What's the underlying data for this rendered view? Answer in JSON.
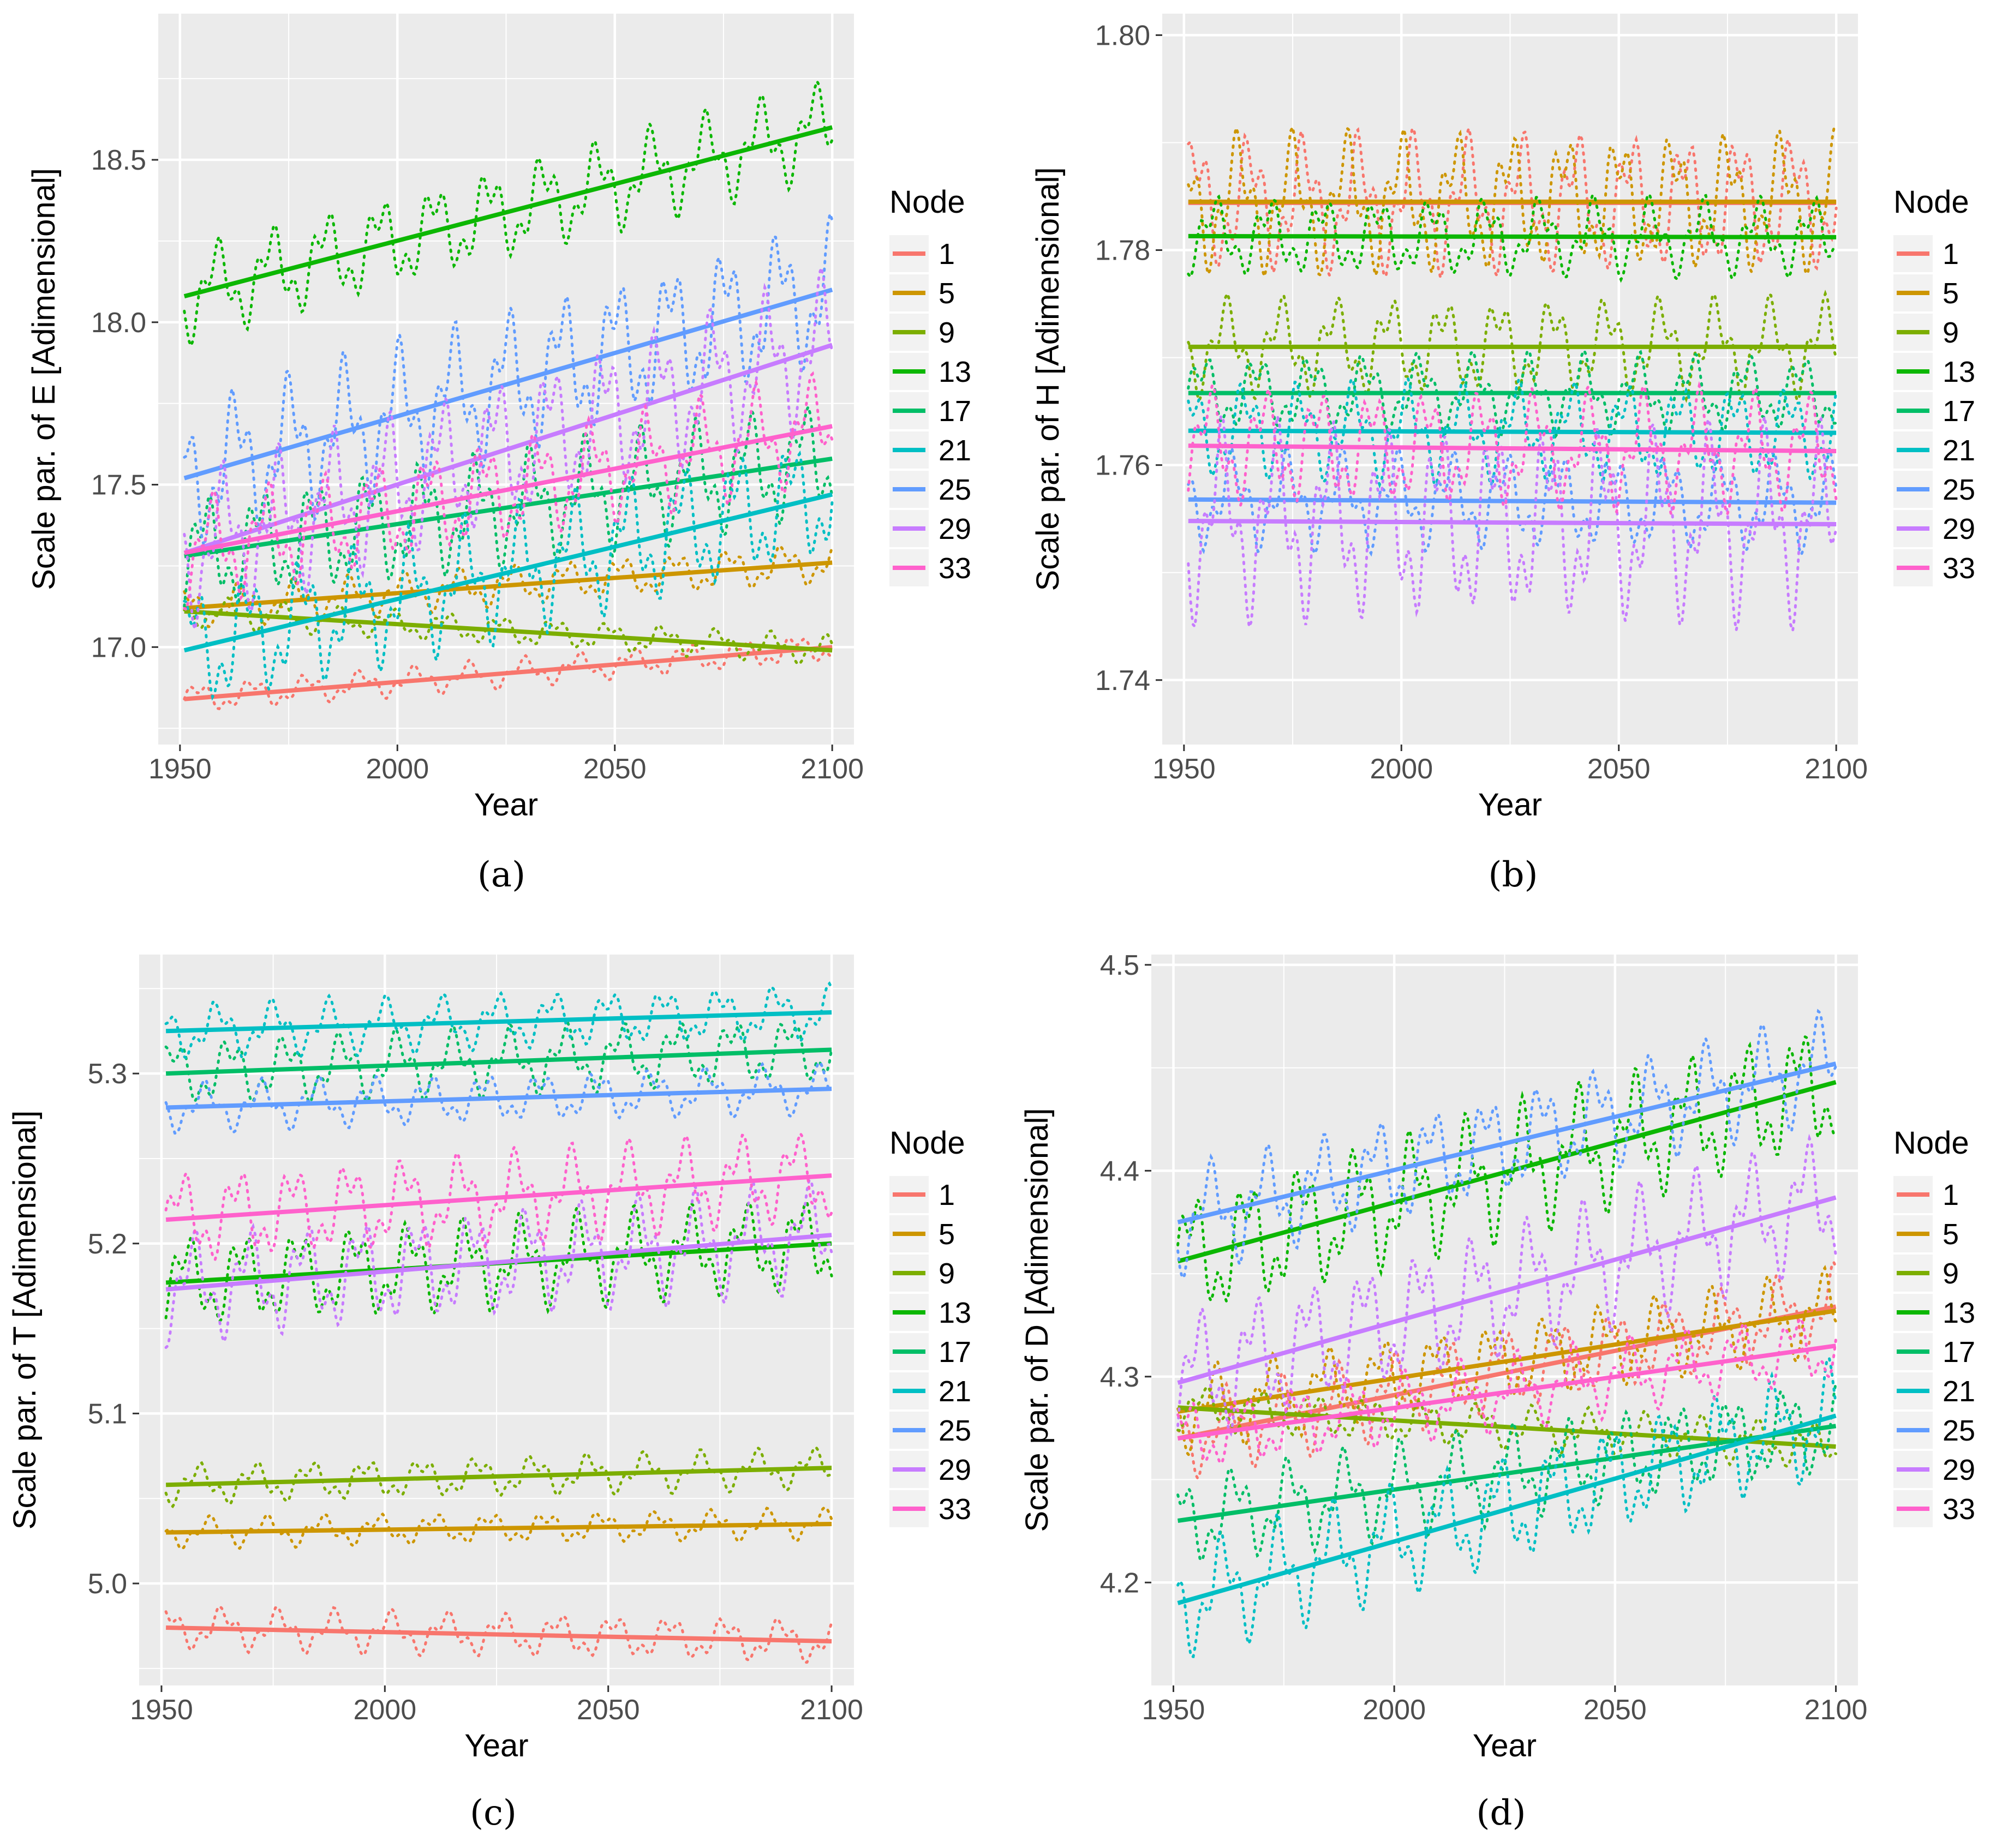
{
  "series_styles": [
    {
      "node": "1",
      "color": "#F8766D"
    },
    {
      "node": "5",
      "color": "#CD9600"
    },
    {
      "node": "9",
      "color": "#7CAE00"
    },
    {
      "node": "13",
      "color": "#0CB702"
    },
    {
      "node": "17",
      "color": "#00BE67"
    },
    {
      "node": "21",
      "color": "#00BFC4"
    },
    {
      "node": "25",
      "color": "#619CFF"
    },
    {
      "node": "29",
      "color": "#C77CFF"
    },
    {
      "node": "33",
      "color": "#FF61CC"
    }
  ],
  "colors": {
    "panel_bg": "#EBEBEB",
    "grid": "#FFFFFF",
    "tick_text": "#4D4D4D",
    "text": "#000000"
  },
  "chart_data": [
    {
      "panel_label": "(a)",
      "type": "line",
      "xlabel": "Year",
      "ylabel": "Scale par. of E [Adimensional]",
      "legend_title": "Node",
      "xlim": [
        1945,
        2105
      ],
      "ylim": [
        16.7,
        18.95
      ],
      "xticks": [
        1950,
        2000,
        2050,
        2100
      ],
      "yticks": [
        17.0,
        17.5,
        18.0,
        18.5
      ],
      "ytick_labels": [
        "17.0",
        "17.5",
        "18.0",
        "18.5"
      ],
      "series": [
        {
          "name": "1",
          "trend": [
            16.84,
            17.0
          ],
          "osc_amp": 0.05
        },
        {
          "name": "5",
          "trend": [
            17.12,
            17.26
          ],
          "osc_amp": 0.07
        },
        {
          "name": "9",
          "trend": [
            17.11,
            16.99
          ],
          "osc_amp": 0.05
        },
        {
          "name": "13",
          "trend": [
            18.08,
            18.6
          ],
          "osc_amp": 0.16
        },
        {
          "name": "17",
          "trend": [
            17.28,
            17.58
          ],
          "osc_amp": 0.2
        },
        {
          "name": "21",
          "trend": [
            16.99,
            17.47
          ],
          "osc_amp": 0.22
        },
        {
          "name": "25",
          "trend": [
            17.52,
            18.1
          ],
          "osc_amp": 0.25
        },
        {
          "name": "29",
          "trend": [
            17.29,
            17.93
          ],
          "osc_amp": 0.25
        },
        {
          "name": "33",
          "trend": [
            17.29,
            17.68
          ],
          "osc_amp": 0.18
        }
      ]
    },
    {
      "panel_label": "(b)",
      "type": "line",
      "xlabel": "Year",
      "ylabel": "Scale par. of H [Adimensional]",
      "legend_title": "Node",
      "xlim": [
        1945,
        2105
      ],
      "ylim": [
        1.734,
        1.802
      ],
      "xticks": [
        1950,
        2000,
        2050,
        2100
      ],
      "yticks": [
        1.74,
        1.76,
        1.78,
        1.8
      ],
      "ytick_labels": [
        "1.74",
        "1.76",
        "1.78",
        "1.80"
      ],
      "series": [
        {
          "name": "1",
          "trend": [
            1.7844,
            1.7844
          ],
          "osc_amp": 0.007
        },
        {
          "name": "5",
          "trend": [
            1.7845,
            1.7845
          ],
          "osc_amp": 0.007
        },
        {
          "name": "9",
          "trend": [
            1.771,
            1.771
          ],
          "osc_amp": 0.005
        },
        {
          "name": "13",
          "trend": [
            1.7813,
            1.7812
          ],
          "osc_amp": 0.004
        },
        {
          "name": "17",
          "trend": [
            1.7667,
            1.7667
          ],
          "osc_amp": 0.004
        },
        {
          "name": "21",
          "trend": [
            1.7632,
            1.763
          ],
          "osc_amp": 0.005
        },
        {
          "name": "25",
          "trend": [
            1.7568,
            1.7565
          ],
          "osc_amp": 0.005
        },
        {
          "name": "29",
          "trend": [
            1.7548,
            1.7545
          ],
          "osc_amp": 0.01
        },
        {
          "name": "33",
          "trend": [
            1.7618,
            1.7613
          ],
          "osc_amp": 0.006
        }
      ]
    },
    {
      "panel_label": "(c)",
      "type": "line",
      "xlabel": "Year",
      "ylabel": "Scale par. of T [Adimensional]",
      "legend_title": "Node",
      "xlim": [
        1945,
        2105
      ],
      "ylim": [
        4.94,
        5.37
      ],
      "xticks": [
        1950,
        2000,
        2050,
        2100
      ],
      "yticks": [
        5.0,
        5.1,
        5.2,
        5.3
      ],
      "ytick_labels": [
        "5.0",
        "5.1",
        "5.2",
        "5.3"
      ],
      "series": [
        {
          "name": "1",
          "trend": [
            4.974,
            4.966
          ],
          "osc_amp": 0.014
        },
        {
          "name": "5",
          "trend": [
            5.03,
            5.035
          ],
          "osc_amp": 0.01
        },
        {
          "name": "9",
          "trend": [
            5.058,
            5.068
          ],
          "osc_amp": 0.013
        },
        {
          "name": "13",
          "trend": [
            5.177,
            5.2
          ],
          "osc_amp": 0.03
        },
        {
          "name": "17",
          "trend": [
            5.3,
            5.314
          ],
          "osc_amp": 0.022
        },
        {
          "name": "21",
          "trend": [
            5.325,
            5.336
          ],
          "osc_amp": 0.018
        },
        {
          "name": "25",
          "trend": [
            5.28,
            5.291
          ],
          "osc_amp": 0.016
        },
        {
          "name": "29",
          "trend": [
            5.173,
            5.205
          ],
          "osc_amp": 0.035
        },
        {
          "name": "33",
          "trend": [
            5.214,
            5.24
          ],
          "osc_amp": 0.03
        }
      ]
    },
    {
      "panel_label": "(d)",
      "type": "line",
      "xlabel": "Year",
      "ylabel": "Scale par. of D [Adimensional]",
      "legend_title": "Node",
      "xlim": [
        1945,
        2105
      ],
      "ylim": [
        4.15,
        4.505
      ],
      "xticks": [
        1950,
        2000,
        2050,
        2100
      ],
      "yticks": [
        4.2,
        4.3,
        4.4,
        4.5
      ],
      "ytick_labels": [
        "4.2",
        "4.3",
        "4.4",
        "4.5"
      ],
      "series": [
        {
          "name": "1",
          "trend": [
            4.27,
            4.334
          ],
          "osc_amp": 0.022
        },
        {
          "name": "5",
          "trend": [
            4.283,
            4.332
          ],
          "osc_amp": 0.022
        },
        {
          "name": "9",
          "trend": [
            4.285,
            4.266
          ],
          "osc_amp": 0.012
        },
        {
          "name": "13",
          "trend": [
            4.356,
            4.443
          ],
          "osc_amp": 0.035
        },
        {
          "name": "17",
          "trend": [
            4.23,
            4.276
          ],
          "osc_amp": 0.025
        },
        {
          "name": "21",
          "trend": [
            4.19,
            4.281
          ],
          "osc_amp": 0.03
        },
        {
          "name": "25",
          "trend": [
            4.375,
            4.452
          ],
          "osc_amp": 0.028
        },
        {
          "name": "29",
          "trend": [
            4.297,
            4.387
          ],
          "osc_amp": 0.035
        },
        {
          "name": "33",
          "trend": [
            4.27,
            4.315
          ],
          "osc_amp": 0.02
        }
      ]
    }
  ]
}
